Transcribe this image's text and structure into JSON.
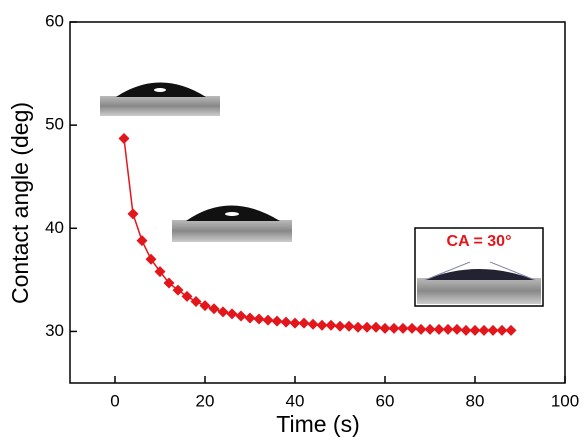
{
  "chart_data": {
    "type": "line",
    "xlabel": "Time (s)",
    "ylabel": "Contact angle (deg)",
    "annotation": "CA = 30°",
    "x": [
      2,
      4,
      6,
      8,
      10,
      12,
      14,
      16,
      18,
      20,
      22,
      24,
      26,
      28,
      30,
      32,
      34,
      36,
      38,
      40,
      42,
      44,
      46,
      48,
      50,
      52,
      54,
      56,
      58,
      60,
      62,
      64,
      66,
      68,
      70,
      72,
      74,
      76,
      78,
      80,
      82,
      84,
      86,
      88
    ],
    "series": [
      {
        "color": "#e3161c",
        "values": [
          48.7,
          41.4,
          38.8,
          37.0,
          35.8,
          34.7,
          34.0,
          33.4,
          32.9,
          32.5,
          32.2,
          31.9,
          31.7,
          31.5,
          31.3,
          31.2,
          31.1,
          31.0,
          30.9,
          30.8,
          30.8,
          30.7,
          30.6,
          30.6,
          30.5,
          30.5,
          30.4,
          30.4,
          30.4,
          30.3,
          30.3,
          30.3,
          30.3,
          30.2,
          30.2,
          30.2,
          30.2,
          30.2,
          30.1,
          30.1,
          30.1,
          30.1,
          30.1,
          30.1
        ]
      }
    ],
    "xlim": [
      -10,
      100
    ],
    "xticks": [
      0,
      20,
      40,
      60,
      80,
      100
    ],
    "ylim": [
      25,
      60
    ],
    "yticks": [
      30,
      40,
      50,
      60
    ]
  }
}
